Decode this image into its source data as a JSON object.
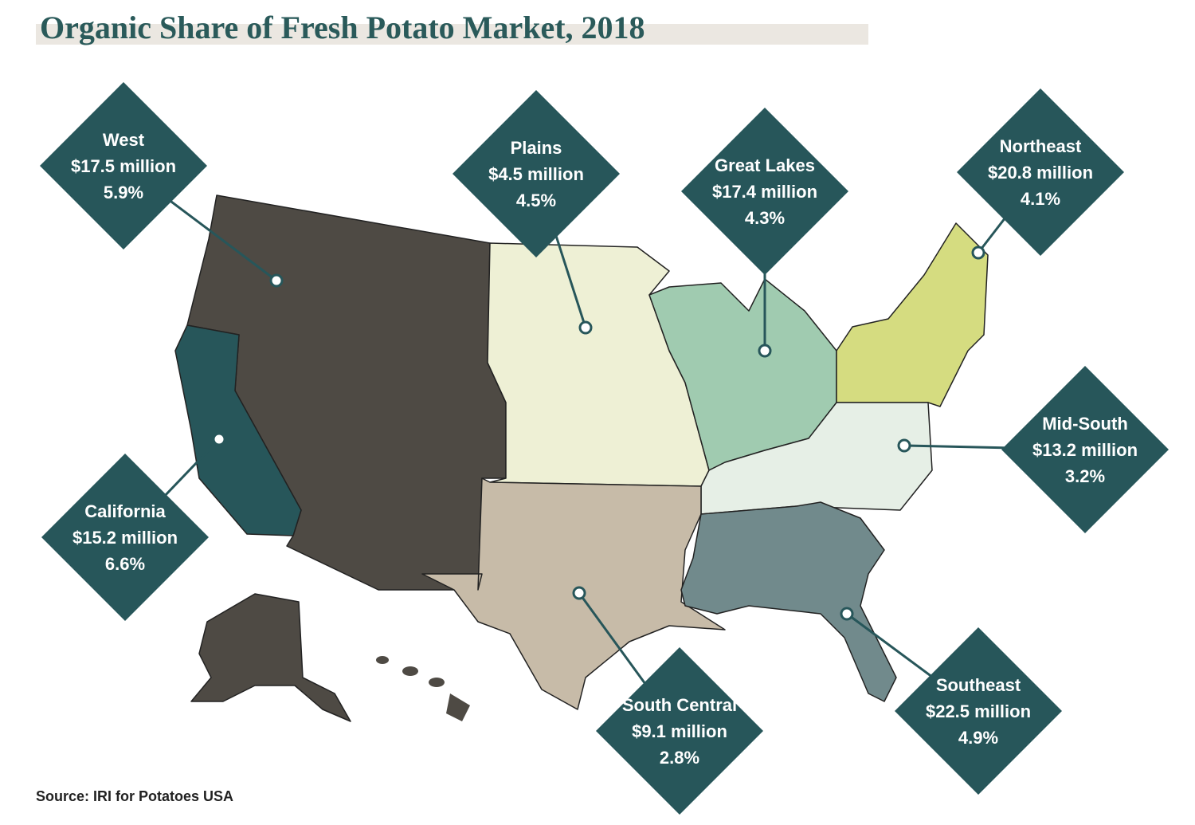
{
  "title": "Organic Share of Fresh Potato Market, 2018",
  "regions": [
    {
      "name": "West",
      "sales": "$17.5 million",
      "share": "5.9%"
    },
    {
      "name": "Plains",
      "sales": "$4.5 million",
      "share": "4.5%"
    },
    {
      "name": "Great Lakes",
      "sales": "$17.4 million",
      "share": "4.3%"
    },
    {
      "name": "Northeast",
      "sales": "$20.8 million",
      "share": "4.1%"
    },
    {
      "name": "Mid-South",
      "sales": "$13.2 million",
      "share": "3.2%"
    },
    {
      "name": "California",
      "sales": "$15.2 million",
      "share": "6.6%"
    },
    {
      "name": "South Central",
      "sales": "$9.1 million",
      "share": "2.8%"
    },
    {
      "name": "Southeast",
      "sales": "$22.5 million",
      "share": "4.9%"
    }
  ],
  "source": "Source: IRI for Potatoes USA"
}
